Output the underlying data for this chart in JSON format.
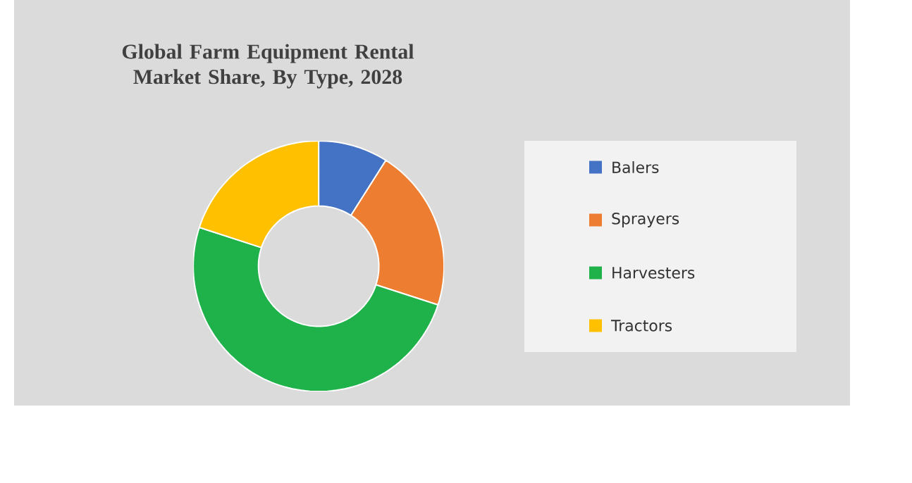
{
  "chart_data": {
    "type": "donut",
    "title": "Global Farm Equipment Rental Market Share, By Type, 2028",
    "categories": [
      "Balers",
      "Sprayers",
      "Harvesters",
      "Tractors"
    ],
    "values": [
      9,
      21,
      50,
      20
    ],
    "colors": [
      "#4472c4",
      "#ed7d31",
      "#1fb14a",
      "#ffc000"
    ],
    "legend": "right"
  }
}
